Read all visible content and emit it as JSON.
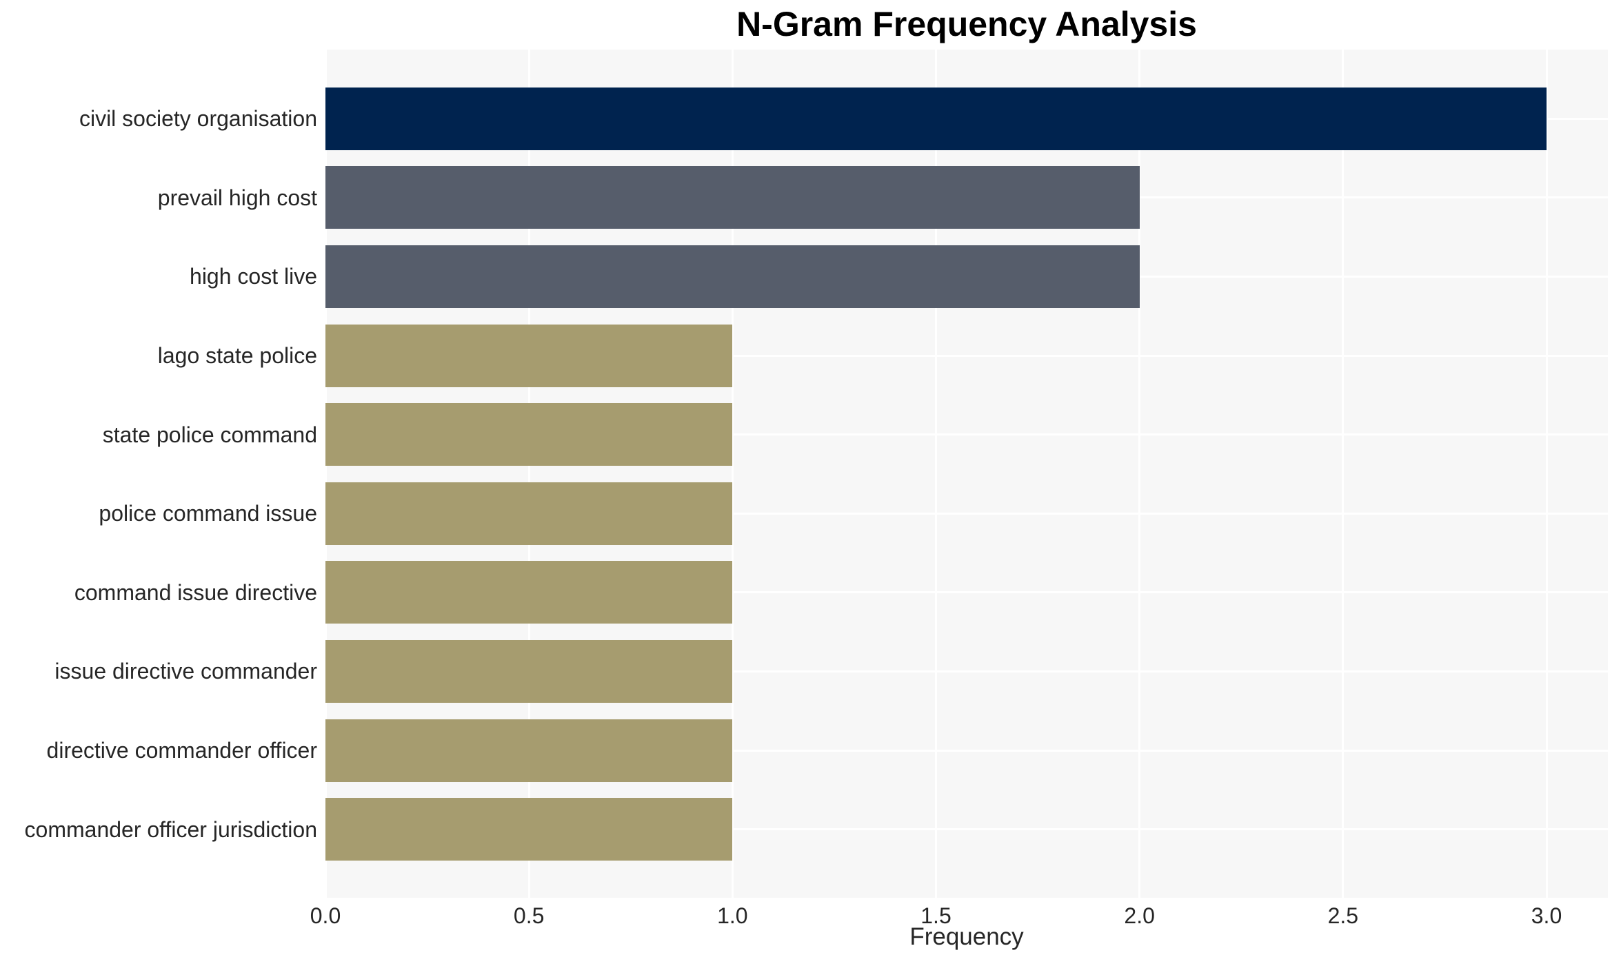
{
  "chart_data": {
    "type": "bar",
    "orientation": "horizontal",
    "title": "N-Gram Frequency Analysis",
    "xlabel": "Frequency",
    "ylabel": "",
    "categories": [
      "civil society organisation",
      "prevail high cost",
      "high cost live",
      "lago state police",
      "state police command",
      "police command issue",
      "command issue directive",
      "issue directive commander",
      "directive commander officer",
      "commander officer jurisdiction"
    ],
    "values": [
      3,
      2,
      2,
      1,
      1,
      1,
      1,
      1,
      1,
      1
    ],
    "bar_colors": [
      "#00234f",
      "#565d6b",
      "#565d6b",
      "#a69c6f",
      "#a69c6f",
      "#a69c6f",
      "#a69c6f",
      "#a69c6f",
      "#a69c6f",
      "#a69c6f"
    ],
    "xticks": [
      0,
      0.5,
      1,
      1.5,
      2,
      2.5,
      3
    ],
    "xtick_labels": [
      "0.0",
      "0.5",
      "1.0",
      "1.5",
      "2.0",
      "2.5",
      "3.0"
    ],
    "xlim": [
      0,
      3.15
    ],
    "grid": true,
    "legend": false,
    "legend_position": "none",
    "plot_background": "#f7f7f7",
    "grid_color": "#ffffff",
    "text_color": "#262626",
    "title_color": "#000000"
  }
}
